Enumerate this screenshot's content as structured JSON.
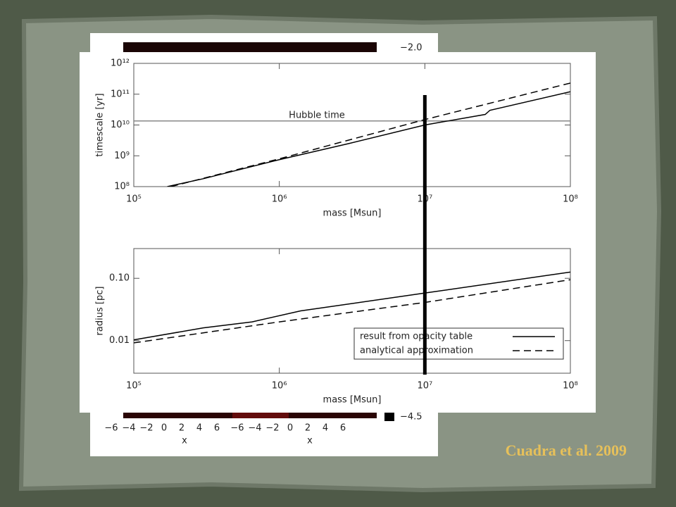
{
  "chart_data": [
    {
      "type": "line",
      "xlabel": "mass [Msun]",
      "ylabel": "timescale [yr]",
      "xscale": "log",
      "yscale": "log",
      "xlim": [
        100000,
        100000000
      ],
      "ylim": [
        100000000,
        1000000000000
      ],
      "xticks": [
        {
          "value": 100000,
          "label": "10⁵"
        },
        {
          "value": 1000000,
          "label": "10⁶"
        },
        {
          "value": 10000000,
          "label": "10⁷"
        },
        {
          "value": 100000000,
          "label": "10⁸"
        }
      ],
      "yticks": [
        {
          "value": 100000000,
          "label": "10⁸"
        },
        {
          "value": 1000000000,
          "label": "10⁹"
        },
        {
          "value": 10000000000,
          "label": "10¹⁰"
        },
        {
          "value": 100000000000,
          "label": "10¹¹"
        },
        {
          "value": 1000000000000,
          "label": "10¹²"
        }
      ],
      "hline": {
        "value": 13500000000,
        "label": "Hubble time",
        "color": "#888888"
      },
      "series": [
        {
          "color": "#000000",
          "dash": "solid",
          "x": [
            170000,
            300000,
            1000000,
            3000000,
            10000000,
            26000000,
            28000000,
            100000000
          ],
          "values": [
            100000000,
            180000000,
            750000000,
            2500000000,
            10000000000,
            22000000000,
            30000000000,
            120000000000
          ]
        },
        {
          "color": "#000000",
          "dash": "dashed",
          "x": [
            180000,
            1000000,
            10000000,
            100000000
          ],
          "values": [
            100000000,
            800000000,
            15000000000,
            230000000000
          ]
        }
      ]
    },
    {
      "type": "line",
      "xlabel": "mass [Msun]",
      "ylabel": "radius [pc]",
      "xscale": "log",
      "yscale": "log",
      "xlim": [
        100000,
        100000000
      ],
      "ylim": [
        0.003,
        0.3
      ],
      "xticks": [
        {
          "value": 100000,
          "label": "10⁵"
        },
        {
          "value": 1000000,
          "label": "10⁶"
        },
        {
          "value": 10000000,
          "label": "10⁷"
        },
        {
          "value": 100000000,
          "label": "10⁸"
        }
      ],
      "yticks": [
        0.01,
        {
          "value": 0.1,
          "label": "0.10"
        }
      ],
      "legend": "lower right",
      "series": [
        {
          "name": "result from opacity table",
          "color": "#000000",
          "dash": "solid",
          "x": [
            100000,
            300000,
            650000,
            1400000,
            10000000,
            100000000
          ],
          "values": [
            0.0103,
            0.016,
            0.02,
            0.03,
            0.058,
            0.126
          ]
        },
        {
          "name": "analytical approximation",
          "color": "#000000",
          "dash": "dashed",
          "x": [
            100000,
            1000000,
            10000000,
            100000000
          ],
          "values": [
            0.0092,
            0.02,
            0.041,
            0.095
          ]
        }
      ]
    }
  ],
  "marker_x": 10000000,
  "caption": "Cuadra et al. 2009",
  "background_figure": {
    "colorbar_labels": [
      "−2.0",
      "−4.5"
    ],
    "x_ticks": [
      "−6",
      "−4",
      "−2",
      "0",
      "2",
      "4",
      "6"
    ],
    "x_label": "x"
  }
}
